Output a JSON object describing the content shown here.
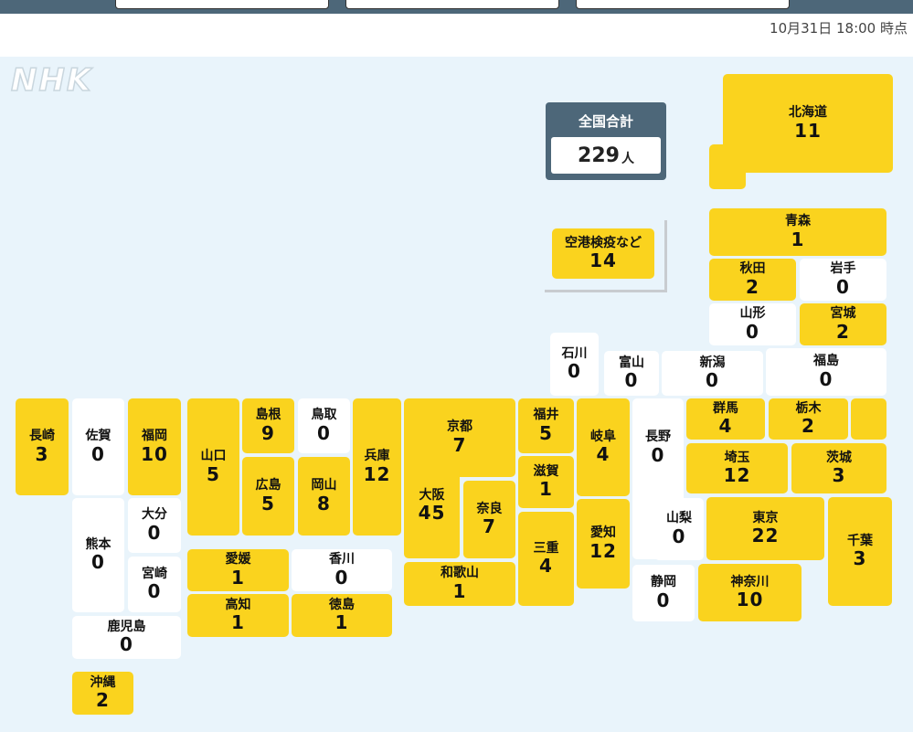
{
  "timestamp": "10月31日 18:00 時点",
  "logo": "NHK",
  "total": {
    "label": "全国合計",
    "value": "229",
    "unit": "人"
  },
  "colors": {
    "active": "#fad31e",
    "zero": "#ffffff",
    "header": "#4d6779",
    "map_bg": "#e9f4fb"
  },
  "airport": {
    "name": "空港検疫など",
    "count": "14"
  },
  "prefectures": {
    "hokkaido": {
      "name": "北海道",
      "count": "11"
    },
    "aomori": {
      "name": "青森",
      "count": "1"
    },
    "akita": {
      "name": "秋田",
      "count": "2"
    },
    "iwate": {
      "name": "岩手",
      "count": "0"
    },
    "yamagata": {
      "name": "山形",
      "count": "0"
    },
    "miyagi": {
      "name": "宮城",
      "count": "2"
    },
    "ishikawa": {
      "name": "石川",
      "count": "0"
    },
    "toyama": {
      "name": "富山",
      "count": "0"
    },
    "niigata": {
      "name": "新潟",
      "count": "0"
    },
    "fukushima": {
      "name": "福島",
      "count": "0"
    },
    "nagasaki": {
      "name": "長崎",
      "count": "3"
    },
    "saga": {
      "name": "佐賀",
      "count": "0"
    },
    "fukuoka": {
      "name": "福岡",
      "count": "10"
    },
    "yamaguchi": {
      "name": "山口",
      "count": "5"
    },
    "shimane": {
      "name": "島根",
      "count": "9"
    },
    "tottori": {
      "name": "鳥取",
      "count": "0"
    },
    "hyogo": {
      "name": "兵庫",
      "count": "12"
    },
    "kyoto": {
      "name": "京都",
      "count": "7"
    },
    "fukui": {
      "name": "福井",
      "count": "5"
    },
    "gifu": {
      "name": "岐阜",
      "count": "4"
    },
    "nagano": {
      "name": "長野",
      "count": "0"
    },
    "gunma": {
      "name": "群馬",
      "count": "4"
    },
    "tochigi": {
      "name": "栃木",
      "count": "2"
    },
    "hiroshima": {
      "name": "広島",
      "count": "5"
    },
    "okayama": {
      "name": "岡山",
      "count": "8"
    },
    "osaka": {
      "name": "大阪",
      "count": "45"
    },
    "nara": {
      "name": "奈良",
      "count": "7"
    },
    "shiga": {
      "name": "滋賀",
      "count": "1"
    },
    "saitama": {
      "name": "埼玉",
      "count": "12"
    },
    "ibaraki": {
      "name": "茨城",
      "count": "3"
    },
    "oita": {
      "name": "大分",
      "count": "0"
    },
    "kumamoto": {
      "name": "熊本",
      "count": "0"
    },
    "miyazaki": {
      "name": "宮崎",
      "count": "0"
    },
    "ehime": {
      "name": "愛媛",
      "count": "1"
    },
    "kagawa": {
      "name": "香川",
      "count": "0"
    },
    "mie": {
      "name": "三重",
      "count": "4"
    },
    "aichi": {
      "name": "愛知",
      "count": "12"
    },
    "yamanashi": {
      "name": "山梨",
      "count": "0"
    },
    "tokyo": {
      "name": "東京",
      "count": "22"
    },
    "chiba": {
      "name": "千葉",
      "count": "3"
    },
    "wakayama": {
      "name": "和歌山",
      "count": "1"
    },
    "kochi": {
      "name": "高知",
      "count": "1"
    },
    "tokushima": {
      "name": "徳島",
      "count": "1"
    },
    "shizuoka": {
      "name": "静岡",
      "count": "0"
    },
    "kanagawa": {
      "name": "神奈川",
      "count": "10"
    },
    "kagoshima": {
      "name": "鹿児島",
      "count": "0"
    },
    "okinawa": {
      "name": "沖縄",
      "count": "2"
    }
  }
}
